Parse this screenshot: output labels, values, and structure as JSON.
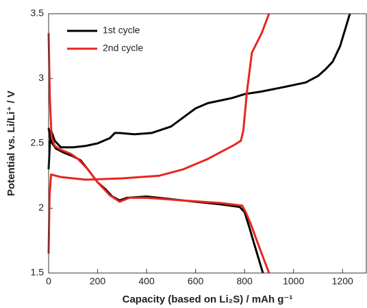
{
  "chart_data": {
    "type": "line",
    "xlabel": "Capacity (based on Li₂S) / mAh g⁻¹",
    "ylabel": "Potential vs. Li/Li⁺ / V",
    "xlim": [
      0,
      1300
    ],
    "ylim": [
      1.5,
      3.5
    ],
    "xticks": [
      0,
      200,
      400,
      600,
      800,
      1000,
      1200
    ],
    "yticks": [
      1.5,
      2,
      2.5,
      3,
      3.5
    ],
    "legend": "upper left",
    "series": [
      {
        "name": "1st cycle",
        "color": "#000000",
        "x": [
          0,
          5,
          15,
          30,
          60,
          100,
          130,
          160,
          200,
          230,
          260,
          290,
          320,
          400,
          500,
          600,
          700,
          780,
          800,
          820,
          840,
          875,
          null,
          0,
          5,
          10,
          25,
          50,
          100,
          150,
          200,
          250,
          270,
          290,
          350,
          420,
          500,
          550,
          600,
          650,
          700,
          750,
          800,
          870,
          950,
          1050,
          1100,
          1130,
          1160,
          1190,
          1230
        ],
        "values": [
          2.62,
          2.55,
          2.5,
          2.46,
          2.43,
          2.4,
          2.37,
          2.3,
          2.2,
          2.15,
          2.09,
          2.06,
          2.08,
          2.09,
          2.07,
          2.05,
          2.03,
          2.01,
          1.97,
          1.85,
          1.72,
          1.5,
          null,
          2.3,
          2.5,
          2.6,
          2.52,
          2.47,
          2.47,
          2.48,
          2.5,
          2.54,
          2.58,
          2.58,
          2.57,
          2.58,
          2.63,
          2.7,
          2.77,
          2.81,
          2.83,
          2.85,
          2.88,
          2.9,
          2.93,
          2.97,
          3.02,
          3.07,
          3.13,
          3.25,
          3.5
        ]
      },
      {
        "name": "2nd cycle",
        "color": "#e8251f",
        "x": [
          0,
          5,
          12,
          25,
          50,
          90,
          120,
          160,
          200,
          250,
          290,
          330,
          400,
          550,
          700,
          790,
          805,
          825,
          860,
          900,
          null,
          0,
          4,
          10,
          50,
          150,
          300,
          450,
          550,
          650,
          720,
          760,
          785,
          795,
          810,
          830,
          870,
          900
        ],
        "values": [
          3.35,
          2.85,
          2.55,
          2.48,
          2.45,
          2.42,
          2.38,
          2.3,
          2.2,
          2.1,
          2.05,
          2.08,
          2.08,
          2.06,
          2.04,
          2.02,
          1.97,
          1.88,
          1.7,
          1.5,
          null,
          1.65,
          2.1,
          2.26,
          2.24,
          2.22,
          2.23,
          2.25,
          2.3,
          2.38,
          2.45,
          2.49,
          2.52,
          2.6,
          2.9,
          3.2,
          3.35,
          3.5
        ]
      }
    ]
  }
}
